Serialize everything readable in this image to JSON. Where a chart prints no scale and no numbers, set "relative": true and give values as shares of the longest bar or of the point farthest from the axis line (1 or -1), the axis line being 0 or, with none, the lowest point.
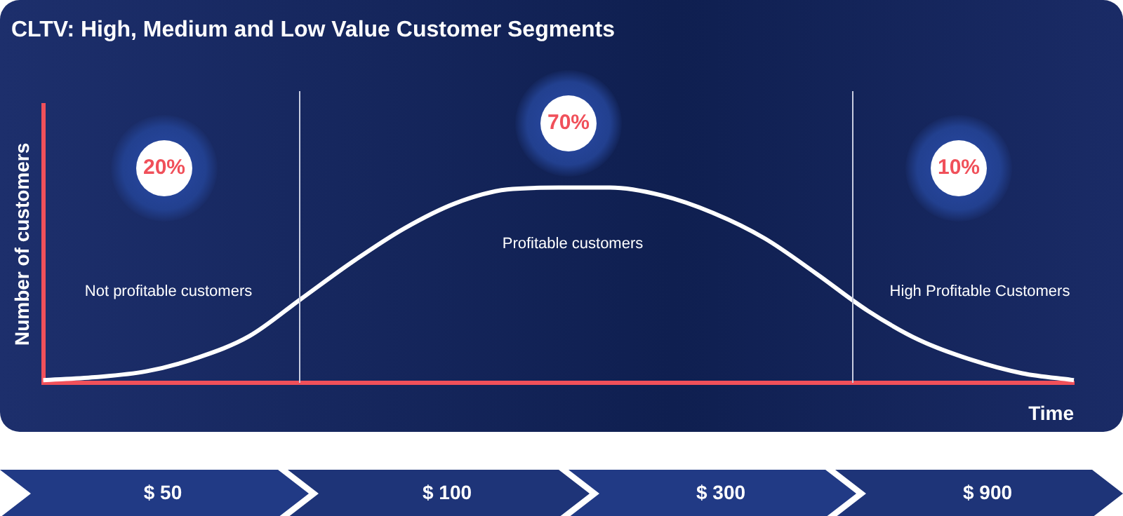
{
  "chart_data": {
    "type": "line",
    "title": "CLTV: High, Medium and Low Value Customer Segments",
    "xlabel": "Time",
    "ylabel": "Number of customers",
    "relative": true,
    "grid": false,
    "legend": false,
    "marker": "none",
    "categories": [
      null,
      null,
      null,
      null,
      null,
      null,
      null,
      null,
      null,
      null,
      null,
      null,
      null,
      null,
      null,
      null,
      null,
      null,
      null,
      null,
      null
    ],
    "series": [
      {
        "color": "#ffffff",
        "values": [
          0.015,
          0.03,
          0.06,
          0.13,
          0.24,
          0.43,
          0.62,
          0.79,
          0.92,
          0.99,
          1,
          1,
          0.96,
          0.87,
          0.74,
          0.56,
          0.37,
          0.22,
          0.12,
          0.05,
          0.015
        ]
      }
    ],
    "annotations": [
      "20%",
      "70%",
      "10%",
      "Not profitable customers",
      "Profitable customers",
      "High Profitable Customers",
      "$ 50",
      "$ 100",
      "$ 300",
      "$ 900"
    ]
  }
}
